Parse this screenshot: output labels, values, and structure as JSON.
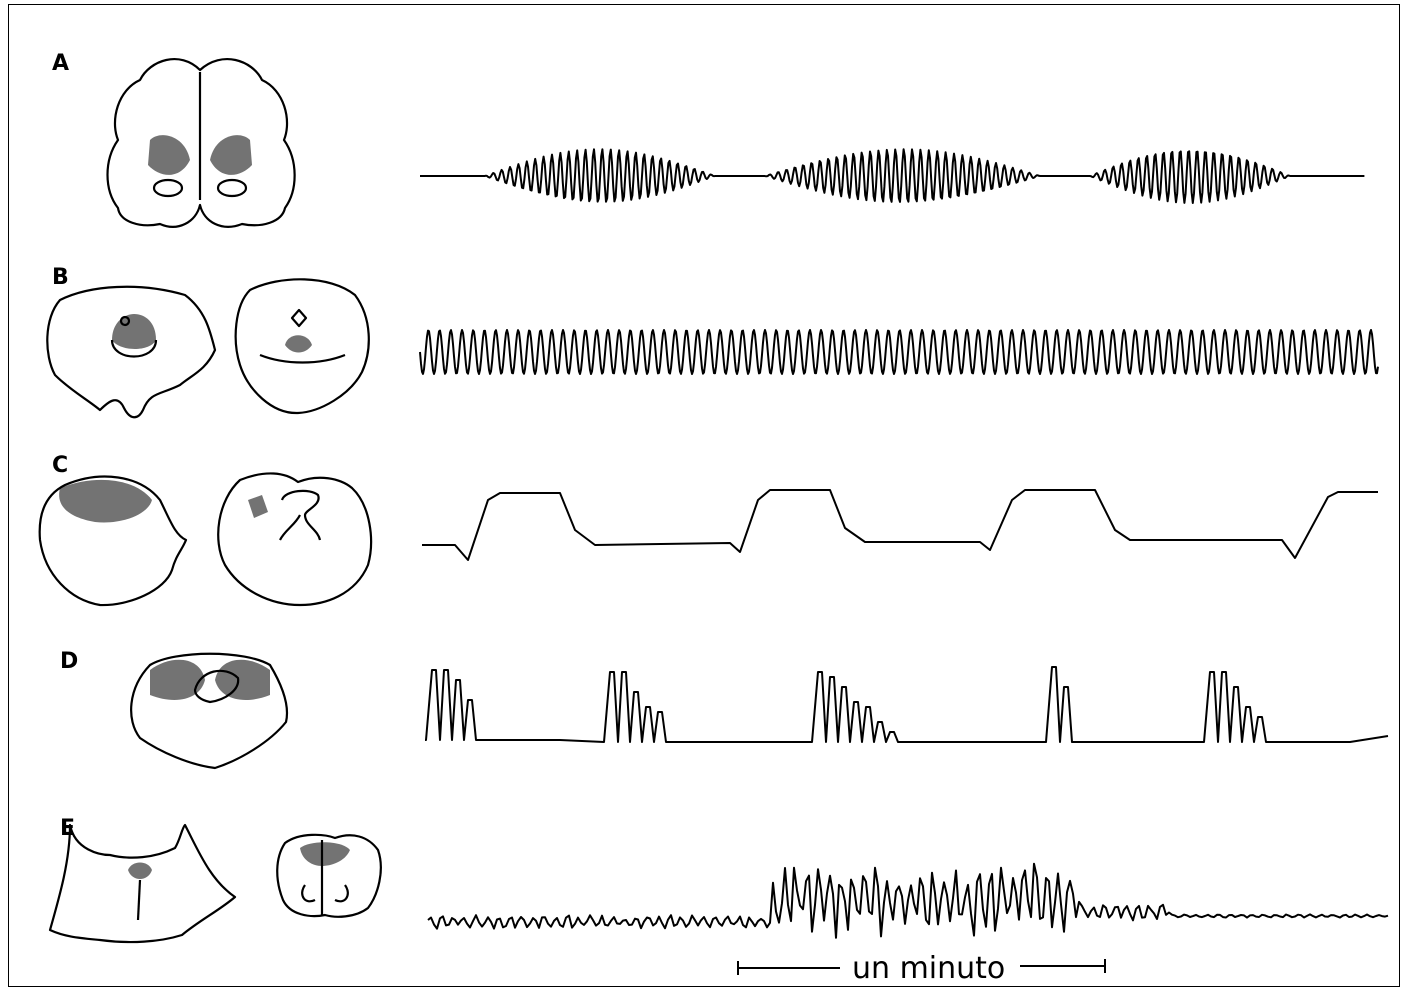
{
  "rows": [
    {
      "label": "A",
      "pattern": "crescendo-decrescendo"
    },
    {
      "label": "B",
      "pattern": "regular-rapid"
    },
    {
      "label": "C",
      "pattern": "square-wave"
    },
    {
      "label": "D",
      "pattern": "clustered-spikes"
    },
    {
      "label": "E",
      "pattern": "irregular"
    }
  ],
  "scale_bar": {
    "label": "un minuto"
  }
}
